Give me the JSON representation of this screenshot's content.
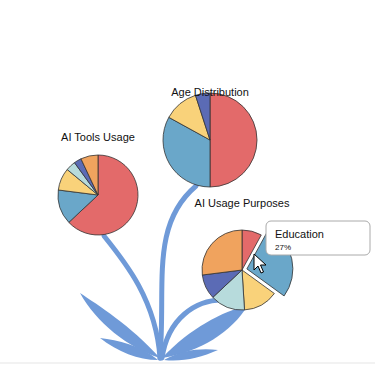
{
  "chart_data": [
    {
      "type": "pie",
      "title": "AI Tools Usage",
      "values": [
        63,
        14,
        9,
        4,
        3,
        7
      ],
      "colors": [
        "#e36a6a",
        "#6aa7c9",
        "#f9d27a",
        "#b7dbdc",
        "#5b6bb5",
        "#f0a35e"
      ]
    },
    {
      "type": "pie",
      "title": "Age Distribution",
      "values": [
        50,
        33,
        12,
        5
      ],
      "colors": [
        "#e36a6a",
        "#6aa7c9",
        "#f9d27a",
        "#5b6bb5"
      ]
    },
    {
      "type": "pie",
      "title": "AI Usage Purposes",
      "categories": [
        null,
        "Education",
        null,
        null,
        null,
        null
      ],
      "values": [
        8,
        27,
        14,
        14,
        10,
        27
      ],
      "value_labels": [
        null,
        "27%",
        null,
        null,
        null,
        null
      ],
      "colors": [
        "#e36a6a",
        "#6aa7c9",
        "#f9d27a",
        "#b7dbdc",
        "#5b6bb5",
        "#f0a35e"
      ]
    }
  ]
}
